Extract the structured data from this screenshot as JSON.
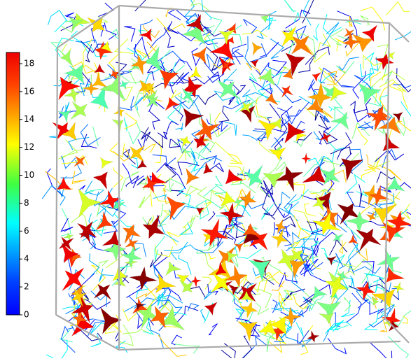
{
  "colorbar": {
    "range": [
      0,
      18.8
    ],
    "ticks": [
      0,
      2,
      4,
      6,
      8,
      10,
      12,
      14,
      16,
      18
    ]
  }
}
